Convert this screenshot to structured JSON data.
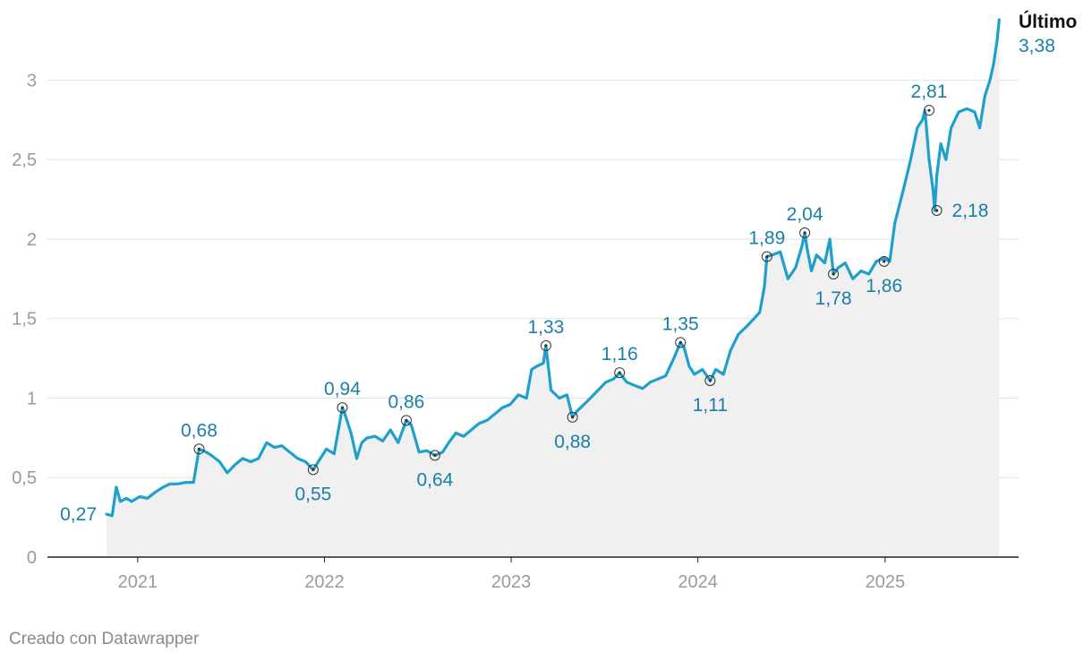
{
  "chart_data": {
    "type": "area",
    "title": "",
    "xlabel": "",
    "ylabel": "",
    "ylim": [
      0,
      3.38
    ],
    "xlim": [
      "2020-11-01",
      "2025-08-15"
    ],
    "y_ticks": [
      0,
      0.5,
      1,
      1.5,
      2,
      2.5,
      3
    ],
    "y_tick_labels": [
      "0",
      "0,5",
      "1",
      "1,5",
      "2",
      "2,5",
      "3"
    ],
    "x_ticks": [
      "2021-01-01",
      "2022-01-01",
      "2023-01-01",
      "2024-01-01",
      "2025-01-01"
    ],
    "x_tick_labels": [
      "2021",
      "2022",
      "2023",
      "2024",
      "2025"
    ],
    "grid": "horizontal",
    "line_color": "#1fa0cc",
    "area_color": "#f0f0f0",
    "annotation_color": "#1a7fa6",
    "series": [
      {
        "x": [
          "2020-11-01",
          "2020-11-12",
          "2020-11-20",
          "2020-11-28",
          "2020-12-10",
          "2020-12-20",
          "2021-01-05",
          "2021-01-20",
          "2021-02-05",
          "2021-02-20",
          "2021-03-05",
          "2021-03-20",
          "2021-04-05",
          "2021-04-20",
          "2021-05-01",
          "2021-05-15",
          "2021-05-25",
          "2021-06-10",
          "2021-06-25",
          "2021-07-10",
          "2021-07-25",
          "2021-08-10",
          "2021-08-25",
          "2021-09-10",
          "2021-09-25",
          "2021-10-10",
          "2021-10-25",
          "2021-11-10",
          "2021-11-25",
          "2021-12-10",
          "2021-12-20",
          "2022-01-05",
          "2022-01-20",
          "2022-02-05",
          "2022-02-10",
          "2022-02-22",
          "2022-03-05",
          "2022-03-15",
          "2022-03-25",
          "2022-04-10",
          "2022-04-25",
          "2022-05-10",
          "2022-05-25",
          "2022-06-10",
          "2022-06-20",
          "2022-07-05",
          "2022-07-20",
          "2022-08-05",
          "2022-08-20",
          "2022-09-01",
          "2022-09-15",
          "2022-09-30",
          "2022-10-15",
          "2022-10-30",
          "2022-11-15",
          "2022-11-30",
          "2022-12-15",
          "2022-12-30",
          "2023-01-15",
          "2023-01-31",
          "2023-02-10",
          "2023-02-20",
          "2023-03-05",
          "2023-03-10",
          "2023-03-20",
          "2023-04-05",
          "2023-04-20",
          "2023-05-01",
          "2023-05-10",
          "2023-05-20",
          "2023-06-05",
          "2023-06-20",
          "2023-07-05",
          "2023-07-20",
          "2023-08-01",
          "2023-08-15",
          "2023-08-30",
          "2023-09-15",
          "2023-09-30",
          "2023-10-15",
          "2023-10-30",
          "2023-11-15",
          "2023-11-28",
          "2023-12-05",
          "2023-12-15",
          "2023-12-25",
          "2024-01-10",
          "2024-01-25",
          "2024-02-05",
          "2024-02-20",
          "2024-03-05",
          "2024-03-20",
          "2024-04-05",
          "2024-04-20",
          "2024-05-01",
          "2024-05-10",
          "2024-05-15",
          "2024-05-25",
          "2024-06-10",
          "2024-06-25",
          "2024-07-10",
          "2024-07-22",
          "2024-07-28",
          "2024-08-01",
          "2024-08-10",
          "2024-08-20",
          "2024-09-05",
          "2024-09-15",
          "2024-09-22",
          "2024-10-01",
          "2024-10-15",
          "2024-10-30",
          "2024-11-15",
          "2024-11-30",
          "2024-12-15",
          "2024-12-30",
          "2025-01-10",
          "2025-01-20",
          "2025-02-05",
          "2025-02-20",
          "2025-03-05",
          "2025-03-15",
          "2025-03-20",
          "2025-03-28",
          "2025-04-05",
          "2025-04-08",
          "2025-04-12",
          "2025-04-20",
          "2025-04-30",
          "2025-05-10",
          "2025-05-25",
          "2025-06-10",
          "2025-06-25",
          "2025-07-05",
          "2025-07-15",
          "2025-07-25",
          "2025-08-01",
          "2025-08-08",
          "2025-08-12"
        ],
        "y": [
          0.27,
          0.26,
          0.44,
          0.35,
          0.37,
          0.35,
          0.38,
          0.37,
          0.41,
          0.44,
          0.46,
          0.46,
          0.47,
          0.47,
          0.68,
          0.66,
          0.64,
          0.6,
          0.53,
          0.58,
          0.62,
          0.6,
          0.62,
          0.72,
          0.69,
          0.7,
          0.66,
          0.62,
          0.6,
          0.55,
          0.6,
          0.68,
          0.65,
          0.94,
          0.9,
          0.78,
          0.62,
          0.72,
          0.75,
          0.76,
          0.73,
          0.8,
          0.72,
          0.86,
          0.83,
          0.66,
          0.67,
          0.64,
          0.66,
          0.72,
          0.78,
          0.76,
          0.8,
          0.84,
          0.86,
          0.9,
          0.94,
          0.96,
          1.02,
          1.0,
          1.18,
          1.2,
          1.22,
          1.33,
          1.05,
          1.0,
          1.02,
          0.88,
          0.92,
          0.95,
          1.0,
          1.05,
          1.1,
          1.12,
          1.16,
          1.1,
          1.08,
          1.06,
          1.1,
          1.12,
          1.14,
          1.25,
          1.35,
          1.32,
          1.2,
          1.15,
          1.18,
          1.11,
          1.18,
          1.15,
          1.3,
          1.4,
          1.45,
          1.5,
          1.54,
          1.7,
          1.89,
          1.9,
          1.92,
          1.75,
          1.82,
          1.95,
          2.04,
          1.95,
          1.8,
          1.9,
          1.85,
          2.0,
          1.78,
          1.82,
          1.85,
          1.75,
          1.8,
          1.78,
          1.86,
          1.88,
          1.86,
          2.1,
          2.3,
          2.5,
          2.7,
          2.75,
          2.81,
          2.5,
          2.3,
          2.18,
          2.4,
          2.6,
          2.5,
          2.7,
          2.8,
          2.82,
          2.8,
          2.7,
          2.9,
          3.0,
          3.1,
          3.25,
          3.38
        ]
      }
    ],
    "annotations": [
      {
        "x": "2020-11-01",
        "y": 0.27,
        "label": "0,27",
        "pos": "left",
        "marker": false
      },
      {
        "x": "2021-05-01",
        "y": 0.68,
        "label": "0,68",
        "pos": "above",
        "marker": true
      },
      {
        "x": "2021-12-10",
        "y": 0.55,
        "label": "0,55",
        "pos": "below",
        "marker": true
      },
      {
        "x": "2022-02-05",
        "y": 0.94,
        "label": "0,94",
        "pos": "above",
        "marker": true
      },
      {
        "x": "2022-06-10",
        "y": 0.86,
        "label": "0,86",
        "pos": "above",
        "marker": true
      },
      {
        "x": "2022-08-05",
        "y": 0.64,
        "label": "0,64",
        "pos": "below",
        "marker": true
      },
      {
        "x": "2023-03-10",
        "y": 1.33,
        "label": "1,33",
        "pos": "above",
        "marker": true
      },
      {
        "x": "2023-05-01",
        "y": 0.88,
        "label": "0,88",
        "pos": "below",
        "marker": true
      },
      {
        "x": "2023-08-01",
        "y": 1.16,
        "label": "1,16",
        "pos": "above",
        "marker": true
      },
      {
        "x": "2023-11-28",
        "y": 1.35,
        "label": "1,35",
        "pos": "above",
        "marker": true
      },
      {
        "x": "2024-01-25",
        "y": 1.11,
        "label": "1,11",
        "pos": "below",
        "marker": true
      },
      {
        "x": "2024-05-15",
        "y": 1.89,
        "label": "1,89",
        "pos": "above",
        "marker": true
      },
      {
        "x": "2024-07-28",
        "y": 2.04,
        "label": "2,04",
        "pos": "above",
        "marker": true
      },
      {
        "x": "2024-09-22",
        "y": 1.78,
        "label": "1,78",
        "pos": "below",
        "marker": true
      },
      {
        "x": "2024-12-30",
        "y": 1.86,
        "label": "1,86",
        "pos": "below",
        "marker": true
      },
      {
        "x": "2025-03-28",
        "y": 2.81,
        "label": "2,81",
        "pos": "above",
        "marker": true
      },
      {
        "x": "2025-04-12",
        "y": 2.18,
        "label": "2,18",
        "pos": "right",
        "marker": true
      }
    ],
    "last_value": {
      "title": "Último",
      "label": "3,38"
    }
  },
  "footer": {
    "credit": "Creado con Datawrapper"
  }
}
